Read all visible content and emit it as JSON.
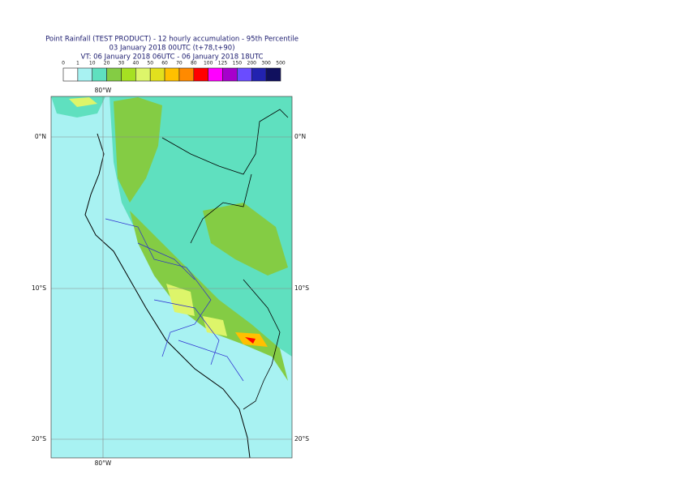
{
  "header": {
    "lines": [
      "Point Rainfall (TEST PRODUCT) - 12 hourly accumulation - 95th Percentile",
      "03 January 2018 00UTC (t+78,t+90)",
      "VT: 06 January 2018 06UTC - 06 January 2018 18UTC"
    ]
  },
  "legend": {
    "levels": [
      0,
      1,
      10,
      20,
      30,
      40,
      50,
      60,
      70,
      80,
      100,
      125,
      150,
      200,
      300,
      500
    ],
    "colors": [
      "#ffffff",
      "#a8f2f2",
      "#5fe0bf",
      "#84cc44",
      "#a6e022",
      "#ddf56a",
      "#e2e01e",
      "#ffc000",
      "#ff8a00",
      "#ff0000",
      "#ff00ff",
      "#a600cc",
      "#6a4cff",
      "#2222b0",
      "#10105e"
    ]
  },
  "map": {
    "lon_labels": [
      "80°W"
    ],
    "lat_labels": [
      "0°N",
      "10°S",
      "20°S"
    ]
  }
}
